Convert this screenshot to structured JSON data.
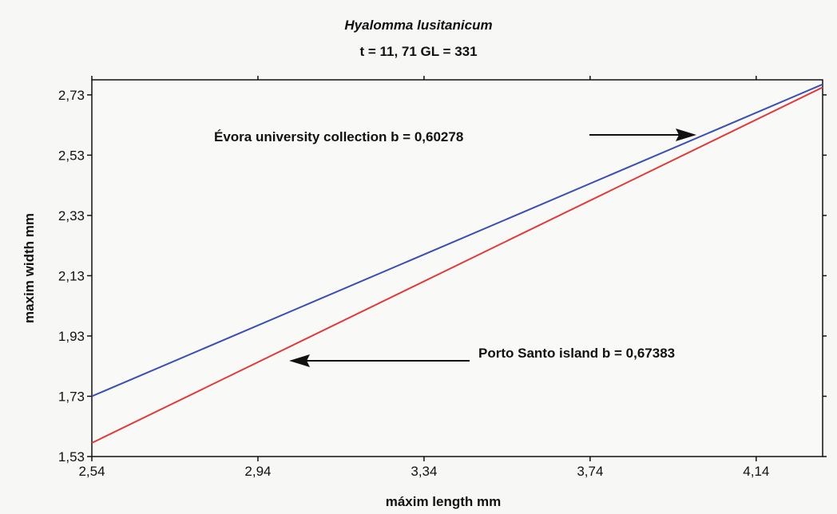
{
  "chart_data": {
    "type": "line",
    "title": "Hyalomma lusitanicum",
    "subtitle": "t = 11, 71 GL = 331",
    "xlabel": "máxim length mm",
    "ylabel": "maxim width mm",
    "xlim": [
      2.54,
      4.3
    ],
    "ylim": [
      1.53,
      2.78
    ],
    "x_ticks": [
      2.54,
      2.94,
      3.34,
      3.74,
      4.14
    ],
    "x_tick_labels": [
      "2,54",
      "2,94",
      "3,34",
      "3,74",
      "4,14"
    ],
    "y_ticks": [
      1.53,
      1.73,
      1.93,
      2.13,
      2.33,
      2.53,
      2.73
    ],
    "y_tick_labels": [
      "1,53",
      "1,73",
      "1,93",
      "2,13",
      "2,33",
      "2,53",
      "2,73"
    ],
    "grid": false,
    "series": [
      {
        "color": "#3a4fb0",
        "x": [
          2.54,
          4.3
        ],
        "y": [
          1.73,
          2.765
        ]
      },
      {
        "color": "#e03a3a",
        "x": [
          2.54,
          4.3
        ],
        "y": [
          1.575,
          2.755
        ]
      }
    ],
    "annotations": [
      {
        "text": "Évora university collection b = 0,60278",
        "arrow_direction": "right"
      },
      {
        "text": "Porto Santo island b = 0,67383",
        "arrow_direction": "left"
      }
    ]
  }
}
